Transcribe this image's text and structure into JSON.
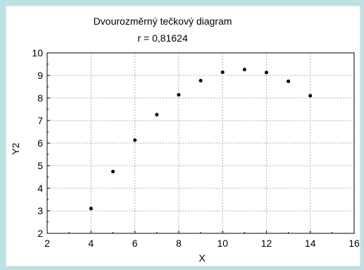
{
  "chart_data": {
    "type": "scatter",
    "title": "Dvourozměrný tečkový diagram",
    "subtitle": "r = 0,81624",
    "xlabel": "X",
    "ylabel": "Y2",
    "xlim": [
      2,
      16
    ],
    "ylim": [
      2,
      10
    ],
    "xticks": [
      "2",
      "4",
      "6",
      "8",
      "10",
      "12",
      "14",
      "16"
    ],
    "yticks": [
      "2",
      "3",
      "4",
      "5",
      "6",
      "7",
      "8",
      "9",
      "10"
    ],
    "grid": true,
    "points": [
      {
        "x": 4,
        "y": 3.1
      },
      {
        "x": 5,
        "y": 4.74
      },
      {
        "x": 6,
        "y": 6.13
      },
      {
        "x": 7,
        "y": 7.26
      },
      {
        "x": 8,
        "y": 8.14
      },
      {
        "x": 9,
        "y": 8.77
      },
      {
        "x": 10,
        "y": 9.14
      },
      {
        "x": 11,
        "y": 9.26
      },
      {
        "x": 12,
        "y": 9.13
      },
      {
        "x": 13,
        "y": 8.74
      },
      {
        "x": 14,
        "y": 8.1
      }
    ],
    "marker_color": "#000000",
    "grid_color": "#b0b0b0"
  }
}
